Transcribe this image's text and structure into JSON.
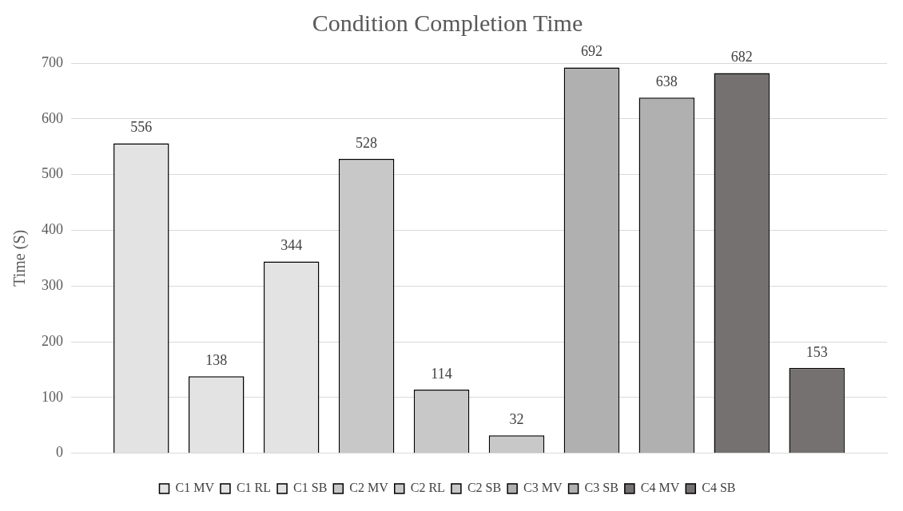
{
  "chart_data": {
    "type": "bar",
    "title": "Condition Completion Time",
    "ylabel": "Time (S)",
    "categories": [
      null
    ],
    "series": [
      {
        "name": "C1 MV",
        "color": "#e3e3e3",
        "values": [
          556
        ]
      },
      {
        "name": "C1 RL",
        "color": "#e3e3e3",
        "values": [
          138
        ]
      },
      {
        "name": "C1 SB",
        "color": "#e3e3e3",
        "values": [
          344
        ]
      },
      {
        "name": "C2 MV",
        "color": "#c8c8c8",
        "values": [
          528
        ]
      },
      {
        "name": "C2 RL",
        "color": "#c8c8c8",
        "values": [
          114
        ]
      },
      {
        "name": "C2 SB",
        "color": "#c8c8c8",
        "values": [
          32
        ]
      },
      {
        "name": "C3 MV",
        "color": "#b0b0b0",
        "values": [
          692
        ]
      },
      {
        "name": "C3 SB",
        "color": "#b0b0b0",
        "values": [
          638
        ]
      },
      {
        "name": "C4 MV",
        "color": "#767171",
        "values": [
          682
        ]
      },
      {
        "name": "C4 SB",
        "color": "#767171",
        "values": [
          153
        ]
      }
    ],
    "ylim": [
      0,
      700
    ],
    "yticks": [
      0,
      100,
      200,
      300,
      400,
      500,
      600,
      700
    ],
    "grid": "y",
    "legend": "bottom",
    "data_labels": true
  }
}
